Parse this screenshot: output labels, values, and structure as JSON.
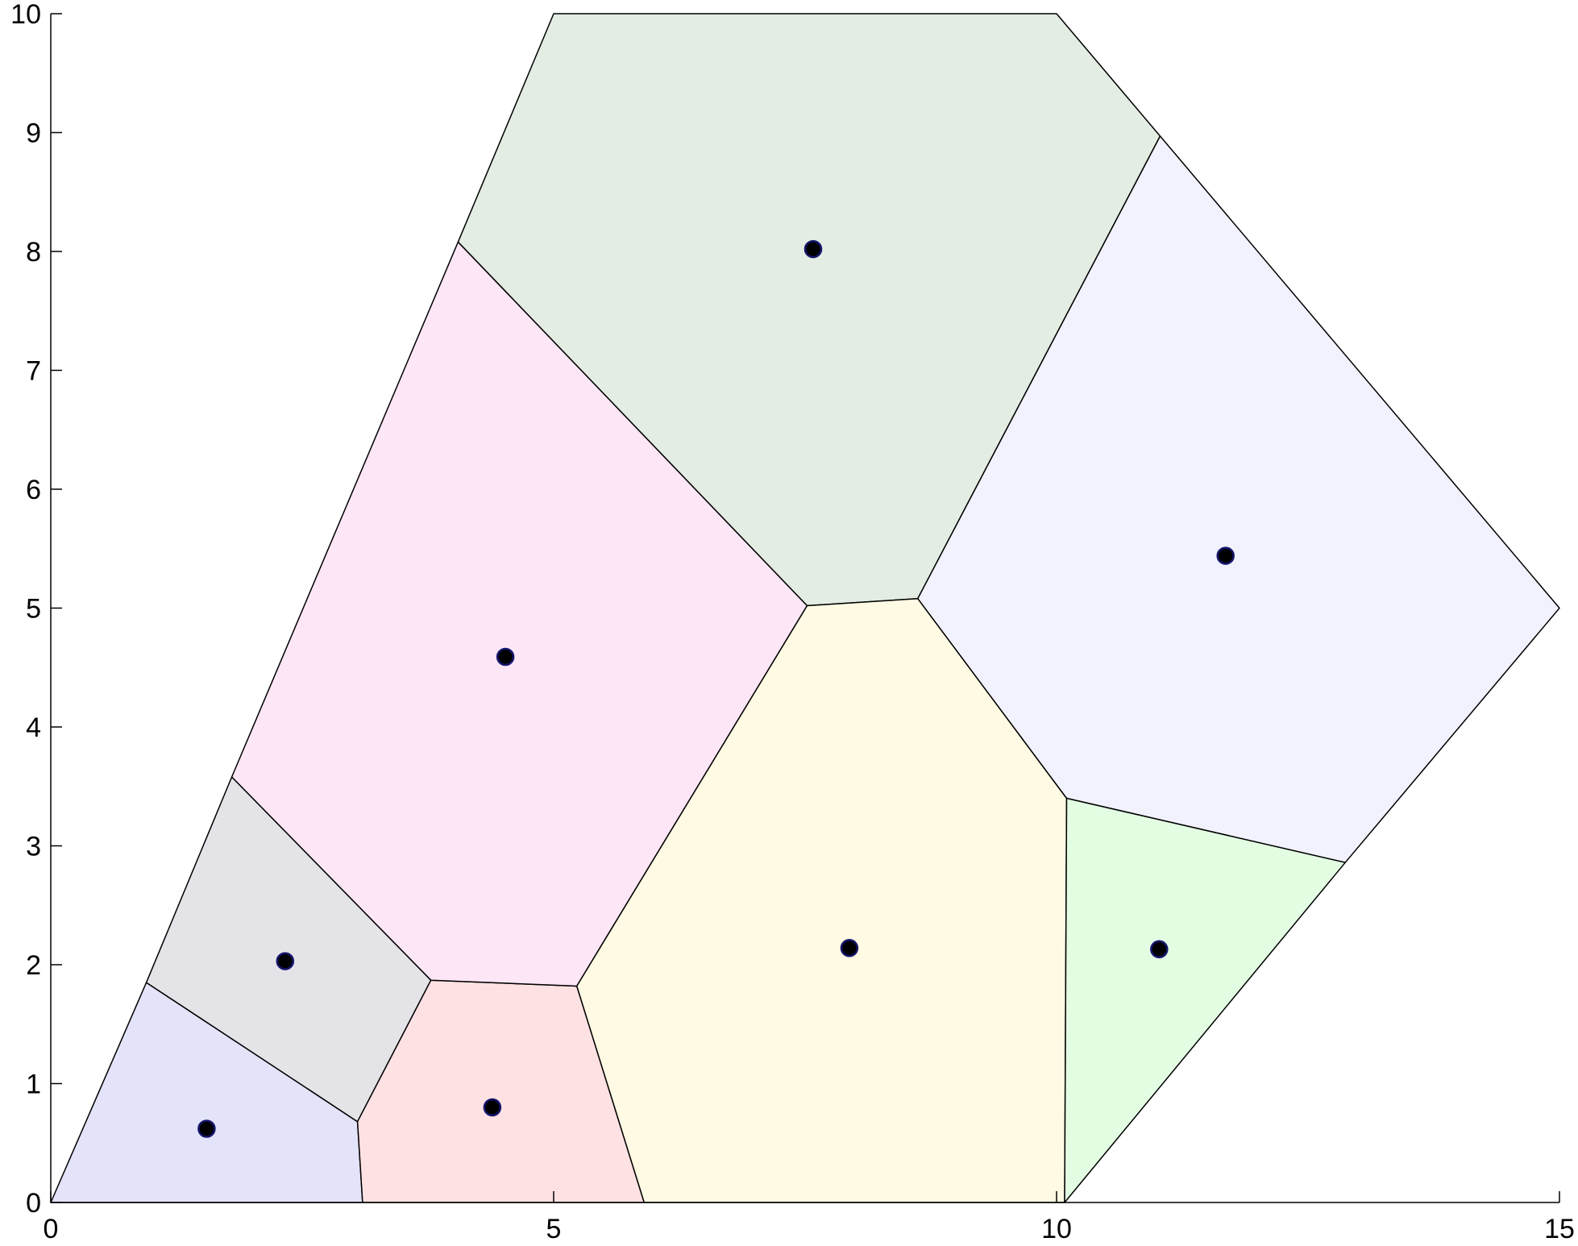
{
  "chart_data": {
    "type": "scatter",
    "title": "",
    "xlabel": "",
    "ylabel": "",
    "xlim": [
      0,
      15
    ],
    "ylim": [
      0,
      10
    ],
    "xticks": [
      0,
      5,
      10,
      15
    ],
    "yticks": [
      0,
      1,
      2,
      3,
      4,
      5,
      6,
      7,
      8,
      9,
      10
    ],
    "grid": false,
    "boundary": [
      [
        0,
        0
      ],
      [
        5,
        10
      ],
      [
        10,
        10
      ],
      [
        15,
        5
      ],
      [
        10,
        0
      ]
    ],
    "cells": [
      {
        "site": [
          1.55,
          0.62
        ],
        "color": "#e3e3fa",
        "polygon": [
          [
            0,
            0
          ],
          [
            0.95,
            1.85
          ],
          [
            3.05,
            0.68
          ],
          [
            3.1,
            0
          ]
        ]
      },
      {
        "site": [
          2.33,
          2.03
        ],
        "color": "#e4e4e8",
        "polygon": [
          [
            0.95,
            1.85
          ],
          [
            1.8,
            3.58
          ],
          [
            3.78,
            1.87
          ],
          [
            3.05,
            0.68
          ]
        ]
      },
      {
        "site": [
          4.39,
          0.8
        ],
        "color": "#fee1e3",
        "polygon": [
          [
            3.05,
            0.68
          ],
          [
            3.78,
            1.87
          ],
          [
            5.23,
            1.82
          ],
          [
            5.9,
            0
          ],
          [
            3.1,
            0
          ]
        ]
      },
      {
        "site": [
          4.52,
          4.59
        ],
        "color": "#fde6f6",
        "polygon": [
          [
            1.8,
            3.58
          ],
          [
            4.05,
            8.08
          ],
          [
            7.52,
            5.02
          ],
          [
            5.23,
            1.82
          ],
          [
            3.78,
            1.87
          ]
        ]
      },
      {
        "site": [
          7.58,
          8.02
        ],
        "color": "#e3ede3",
        "polygon": [
          [
            4.05,
            8.08
          ],
          [
            5,
            10
          ],
          [
            10,
            10
          ],
          [
            11.03,
            8.97
          ],
          [
            8.62,
            5.08
          ],
          [
            7.52,
            5.02
          ]
        ]
      },
      {
        "site": [
          7.94,
          2.14
        ],
        "color": "#fefae3",
        "polygon": [
          [
            5.23,
            1.82
          ],
          [
            7.52,
            5.02
          ],
          [
            8.62,
            5.08
          ],
          [
            10.1,
            3.4
          ],
          [
            10.08,
            0
          ],
          [
            5.9,
            0
          ]
        ]
      },
      {
        "site": [
          11.68,
          5.44
        ],
        "color": "#f1f2fd",
        "polygon": [
          [
            8.62,
            5.08
          ],
          [
            11.03,
            8.97
          ],
          [
            15,
            5
          ],
          [
            12.87,
            2.86
          ],
          [
            10.1,
            3.4
          ]
        ]
      },
      {
        "site": [
          11.02,
          2.13
        ],
        "color": "#e3fde3",
        "polygon": [
          [
            10.1,
            3.4
          ],
          [
            12.87,
            2.86
          ],
          [
            10.08,
            0
          ]
        ]
      }
    ]
  }
}
